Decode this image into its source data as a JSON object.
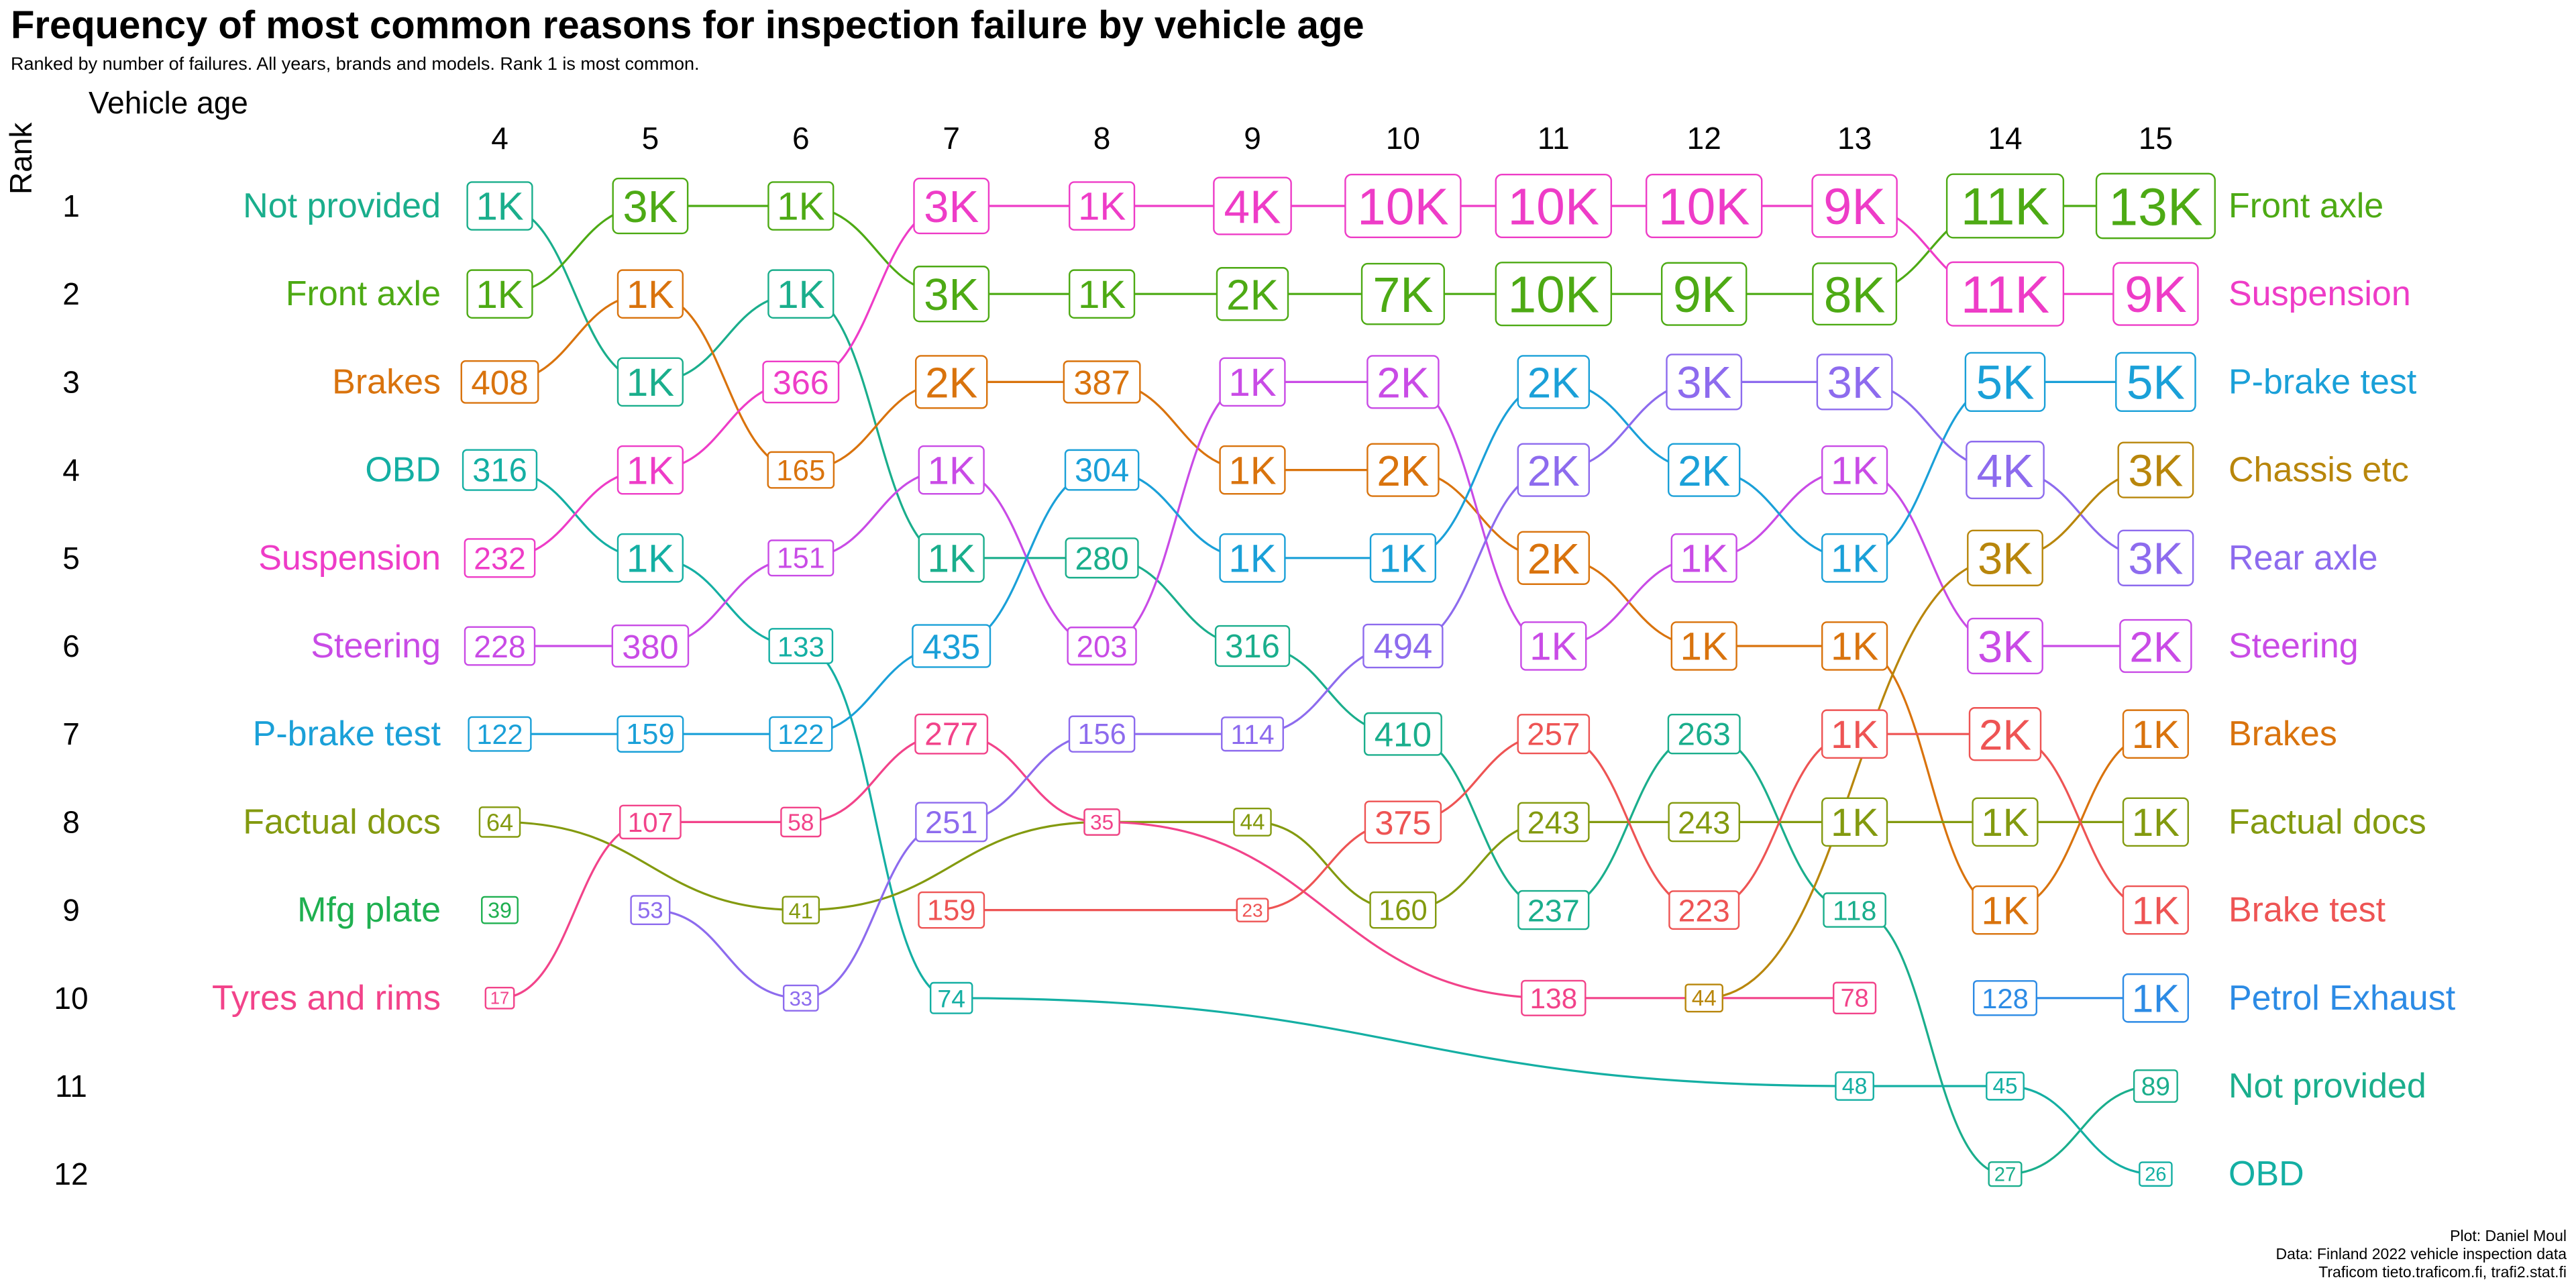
{
  "title": "Frequency of most common reasons for inspection failure by vehicle age",
  "subtitle": "Ranked by number of failures. All years, brands and models. Rank 1 is most common.",
  "x_axis_label": "Vehicle age",
  "y_axis_label": "Rank",
  "caption": [
    "Plot: Daniel Moul",
    "Data: Finland 2022 vehicle inspection data",
    "Traficom tieto.traficom.fi, trafi2.stat.fi"
  ],
  "colors": {
    "Not provided": "#1AAE8C",
    "Front axle": "#4DAA14",
    "Brakes": "#D9730D",
    "OBD": "#14AFA3",
    "Suspension": "#EE3CC7",
    "Steering": "#C94BE6",
    "P-brake test": "#1AA0D8",
    "Factual docs": "#839A0F",
    "Mfg plate": "#1FB050",
    "Tyres and rims": "#F2438A",
    "Chassis etc": "#B8860B",
    "Rear axle": "#8D6BEE",
    "Brake test": "#EE5454",
    "Petrol Exhaust": "#2C8BE5"
  },
  "chart_data": {
    "type": "line",
    "subtype": "bump",
    "x": [
      4,
      5,
      6,
      7,
      8,
      9,
      10,
      11,
      12,
      13,
      14,
      15
    ],
    "y_ranks": [
      1,
      2,
      3,
      4,
      5,
      6,
      7,
      8,
      9,
      10,
      11,
      12
    ],
    "ylim": [
      1,
      12
    ],
    "y_reversed": true,
    "left_labels": [
      "Not provided",
      "Front axle",
      "Brakes",
      "OBD",
      "Suspension",
      "Steering",
      "P-brake test",
      "Factual docs",
      "Mfg plate",
      "Tyres and rims"
    ],
    "right_labels": [
      "Front axle",
      "Suspension",
      "P-brake test",
      "Chassis etc",
      "Rear axle",
      "Steering",
      "Brakes",
      "Factual docs",
      "Brake test",
      "Petrol Exhaust",
      "Not provided",
      "OBD"
    ],
    "series": [
      {
        "name": "Not provided",
        "points": [
          [
            4,
            1,
            "1K"
          ],
          [
            5,
            3,
            "1K"
          ],
          [
            6,
            2,
            "1K"
          ],
          [
            7,
            5,
            "1K"
          ],
          [
            8,
            5,
            "280"
          ],
          [
            9,
            6,
            "316"
          ],
          [
            10,
            7,
            "410"
          ],
          [
            11,
            9,
            "237"
          ],
          [
            12,
            7,
            "263"
          ],
          [
            13,
            9,
            "118"
          ],
          [
            14,
            12,
            "27"
          ],
          [
            15,
            11,
            "89"
          ]
        ]
      },
      {
        "name": "Front axle",
        "points": [
          [
            4,
            2,
            "1K"
          ],
          [
            5,
            1,
            "3K"
          ],
          [
            6,
            1,
            "1K"
          ],
          [
            7,
            2,
            "3K"
          ],
          [
            8,
            2,
            "1K"
          ],
          [
            9,
            2,
            "2K"
          ],
          [
            10,
            2,
            "7K"
          ],
          [
            11,
            2,
            "10K"
          ],
          [
            12,
            2,
            "9K"
          ],
          [
            13,
            2,
            "8K"
          ],
          [
            14,
            1,
            "11K"
          ],
          [
            15,
            1,
            "13K"
          ]
        ]
      },
      {
        "name": "Brakes",
        "points": [
          [
            4,
            3,
            "408"
          ],
          [
            5,
            2,
            "1K"
          ],
          [
            6,
            4,
            "165"
          ],
          [
            7,
            3,
            "2K"
          ],
          [
            8,
            3,
            "387"
          ],
          [
            9,
            4,
            "1K"
          ],
          [
            10,
            4,
            "2K"
          ],
          [
            11,
            5,
            "2K"
          ],
          [
            12,
            6,
            "1K"
          ],
          [
            13,
            6,
            "1K"
          ],
          [
            14,
            9,
            "1K"
          ],
          [
            15,
            7,
            "1K"
          ]
        ]
      },
      {
        "name": "OBD",
        "points": [
          [
            4,
            4,
            "316"
          ],
          [
            5,
            5,
            "1K"
          ],
          [
            6,
            6,
            "133"
          ],
          [
            7,
            10,
            "74"
          ],
          [
            13,
            11,
            "48"
          ],
          [
            14,
            11,
            "45"
          ],
          [
            15,
            12,
            "26"
          ]
        ]
      },
      {
        "name": "Suspension",
        "points": [
          [
            4,
            5,
            "232"
          ],
          [
            5,
            4,
            "1K"
          ],
          [
            6,
            3,
            "366"
          ],
          [
            7,
            1,
            "3K"
          ],
          [
            8,
            1,
            "1K"
          ],
          [
            9,
            1,
            "4K"
          ],
          [
            10,
            1,
            "10K"
          ],
          [
            11,
            1,
            "10K"
          ],
          [
            12,
            1,
            "10K"
          ],
          [
            13,
            1,
            "9K"
          ],
          [
            14,
            2,
            "11K"
          ],
          [
            15,
            2,
            "9K"
          ]
        ]
      },
      {
        "name": "Steering",
        "points": [
          [
            4,
            6,
            "228"
          ],
          [
            5,
            6,
            "380"
          ],
          [
            6,
            5,
            "151"
          ],
          [
            7,
            4,
            "1K"
          ],
          [
            8,
            6,
            "203"
          ],
          [
            9,
            3,
            "1K"
          ],
          [
            10,
            3,
            "2K"
          ],
          [
            11,
            6,
            "1K"
          ],
          [
            12,
            5,
            "1K"
          ],
          [
            13,
            4,
            "1K"
          ],
          [
            14,
            6,
            "3K"
          ],
          [
            15,
            6,
            "2K"
          ]
        ]
      },
      {
        "name": "P-brake test",
        "points": [
          [
            4,
            7,
            "122"
          ],
          [
            5,
            7,
            "159"
          ],
          [
            6,
            7,
            "122"
          ],
          [
            7,
            6,
            "435"
          ],
          [
            8,
            4,
            "304"
          ],
          [
            9,
            5,
            "1K"
          ],
          [
            10,
            5,
            "1K"
          ],
          [
            11,
            3,
            "2K"
          ],
          [
            12,
            4,
            "2K"
          ],
          [
            13,
            5,
            "1K"
          ],
          [
            14,
            3,
            "5K"
          ],
          [
            15,
            3,
            "5K"
          ]
        ]
      },
      {
        "name": "Factual docs",
        "points": [
          [
            4,
            8,
            "64"
          ],
          [
            6,
            9,
            "41"
          ],
          [
            8,
            8,
            "35"
          ],
          [
            9,
            8,
            "44"
          ],
          [
            10,
            9,
            "160"
          ],
          [
            11,
            8,
            "243"
          ],
          [
            12,
            8,
            "243"
          ],
          [
            13,
            8,
            "1K"
          ],
          [
            14,
            8,
            "1K"
          ],
          [
            15,
            8,
            "1K"
          ]
        ]
      },
      {
        "name": "Mfg plate",
        "points": [
          [
            4,
            9,
            "39"
          ]
        ]
      },
      {
        "name": "Tyres and rims",
        "points": [
          [
            4,
            10,
            "17"
          ],
          [
            5,
            8,
            "107"
          ],
          [
            6,
            8,
            "58"
          ],
          [
            7,
            7,
            "277"
          ],
          [
            8,
            8,
            "35"
          ],
          [
            11,
            10,
            "138"
          ],
          [
            13,
            10,
            "78"
          ]
        ]
      },
      {
        "name": "Rear axle",
        "points": [
          [
            5,
            9,
            "53"
          ],
          [
            6,
            10,
            "33"
          ],
          [
            7,
            8,
            "251"
          ],
          [
            8,
            7,
            "156"
          ],
          [
            9,
            7,
            "114"
          ],
          [
            10,
            6,
            "494"
          ],
          [
            11,
            4,
            "2K"
          ],
          [
            12,
            3,
            "3K"
          ],
          [
            13,
            3,
            "3K"
          ],
          [
            14,
            4,
            "4K"
          ],
          [
            15,
            5,
            "3K"
          ]
        ]
      },
      {
        "name": "Brake test",
        "points": [
          [
            7,
            9,
            "159"
          ],
          [
            9,
            9,
            "23"
          ],
          [
            10,
            8,
            "375"
          ],
          [
            11,
            7,
            "257"
          ],
          [
            12,
            9,
            "223"
          ],
          [
            13,
            7,
            "1K"
          ],
          [
            14,
            7,
            "2K"
          ],
          [
            15,
            9,
            "1K"
          ]
        ]
      },
      {
        "name": "Chassis etc",
        "points": [
          [
            12,
            10,
            "44"
          ],
          [
            14,
            5,
            "3K"
          ],
          [
            15,
            4,
            "3K"
          ]
        ]
      },
      {
        "name": "Petrol Exhaust",
        "points": [
          [
            14,
            10,
            "128"
          ],
          [
            15,
            10,
            "1K"
          ]
        ]
      }
    ]
  }
}
